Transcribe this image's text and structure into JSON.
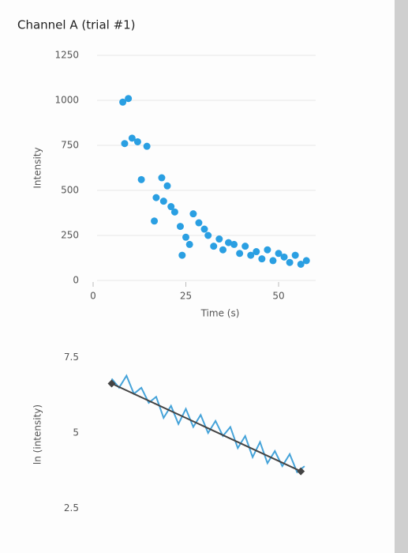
{
  "chart_data": [
    {
      "type": "scatter",
      "title": "Channel A (trial #1)",
      "ylabel": "Intensity",
      "xlabel": "Time (s)",
      "xlim": [
        0,
        60
      ],
      "xticks": [
        0,
        25,
        50
      ],
      "ylim": [
        0,
        1250
      ],
      "yticks": [
        0,
        250,
        500,
        750,
        1000,
        1250
      ],
      "grid": true,
      "series": [
        {
          "color": "#2a9fe2",
          "x": [
            8,
            9.5,
            8.5,
            10.5,
            12,
            14.5,
            13,
            18.5,
            20,
            17,
            19,
            21,
            16.5,
            22,
            24,
            25,
            23.5,
            26,
            27,
            28.5,
            30,
            31,
            32.5,
            34,
            35,
            36.5,
            38,
            39.5,
            41,
            42.5,
            44,
            45.5,
            47,
            48.5,
            50,
            51.5,
            53,
            54.5,
            56,
            57.5
          ],
          "values": [
            990,
            1010,
            760,
            790,
            770,
            745,
            560,
            570,
            525,
            460,
            440,
            410,
            330,
            380,
            140,
            240,
            300,
            200,
            370,
            320,
            285,
            250,
            190,
            230,
            170,
            210,
            200,
            150,
            190,
            140,
            160,
            120,
            170,
            110,
            150,
            130,
            100,
            140,
            90,
            110
          ]
        }
      ]
    },
    {
      "type": "line",
      "ylabel": "ln (intensity)",
      "xlim": [
        0,
        60
      ],
      "ylim": [
        2.2,
        7.7
      ],
      "yticks": [
        2.5,
        5,
        7.5
      ],
      "series": [
        {
          "color": "#45a3d9",
          "x": [
            5,
            7,
            9,
            11,
            13,
            15,
            17,
            19,
            21,
            23,
            25,
            27,
            29,
            31,
            33,
            35,
            37,
            39,
            41,
            43,
            45,
            47,
            49,
            51,
            53,
            55,
            57
          ],
          "values": [
            6.8,
            6.5,
            6.9,
            6.3,
            6.5,
            6.0,
            6.2,
            5.5,
            5.9,
            5.3,
            5.8,
            5.2,
            5.6,
            5.0,
            5.4,
            4.9,
            5.2,
            4.5,
            4.9,
            4.2,
            4.7,
            4.0,
            4.4,
            3.9,
            4.3,
            3.7,
            3.9
          ]
        },
        {
          "color": "#444444",
          "markers": true,
          "x": [
            5,
            56
          ],
          "values": [
            6.64,
            3.73
          ]
        }
      ]
    }
  ]
}
